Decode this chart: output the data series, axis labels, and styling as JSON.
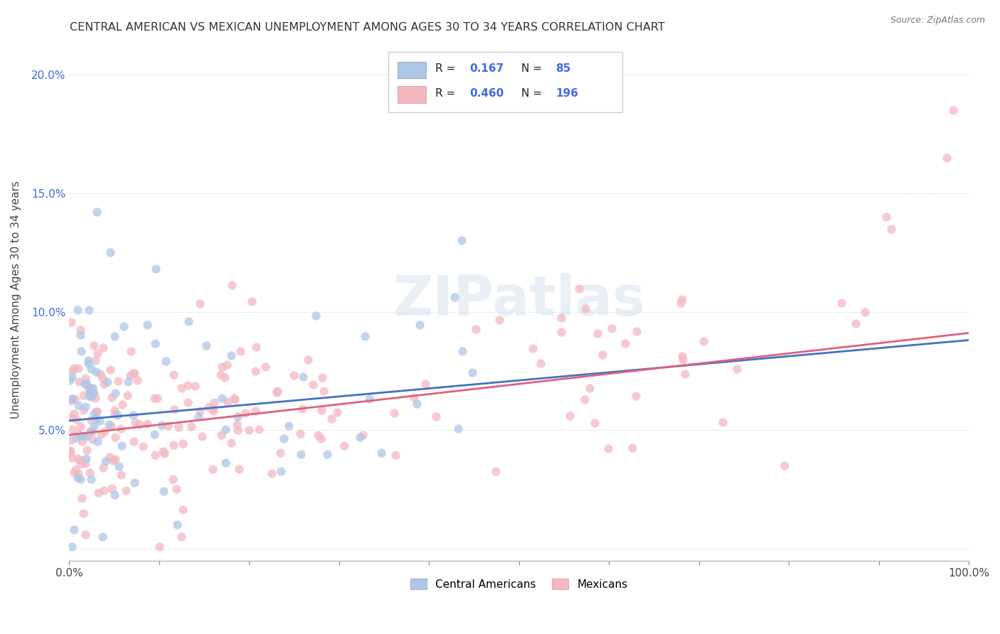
{
  "title": "CENTRAL AMERICAN VS MEXICAN UNEMPLOYMENT AMONG AGES 30 TO 34 YEARS CORRELATION CHART",
  "source": "Source: ZipAtlas.com",
  "ylabel": "Unemployment Among Ages 30 to 34 years",
  "xlim": [
    0,
    1.0
  ],
  "ylim": [
    -0.005,
    0.215
  ],
  "xtick_positions": [
    0.0,
    0.1,
    0.2,
    0.3,
    0.4,
    0.5,
    0.6,
    0.7,
    0.8,
    0.9,
    1.0
  ],
  "xtick_labels": [
    "0.0%",
    "",
    "",
    "",
    "",
    "",
    "",
    "",
    "",
    "",
    "100.0%"
  ],
  "ytick_positions": [
    0.0,
    0.05,
    0.1,
    0.15,
    0.2
  ],
  "ytick_labels": [
    "",
    "5.0%",
    "10.0%",
    "15.0%",
    "20.0%"
  ],
  "ca_color": "#aec6e8",
  "mex_color": "#f4b8c1",
  "ca_line_color": "#4472c4",
  "mex_line_color": "#e06080",
  "ca_R": 0.167,
  "ca_N": 85,
  "mex_R": 0.46,
  "mex_N": 196,
  "background_color": "#ffffff",
  "grid_color": "#d0d0d0",
  "legend_label_ca": "Central Americans",
  "legend_label_mex": "Mexicans",
  "title_color": "#333333",
  "source_color": "#777777",
  "stat_color": "#4169e1",
  "ca_line_start_y": 0.054,
  "ca_line_end_y": 0.088,
  "mex_line_start_y": 0.048,
  "mex_line_end_y": 0.091
}
